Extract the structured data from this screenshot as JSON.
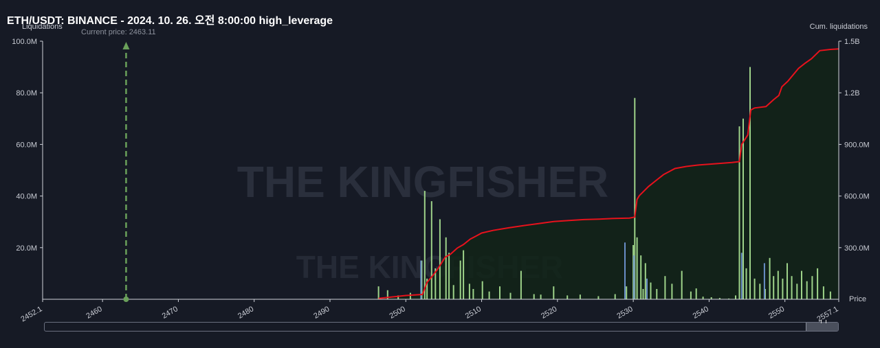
{
  "title": "ETH/USDT: BINANCE - 2024. 10. 26. 오전 8:00:00 high_leverage",
  "current_price_label": "Current price: 2463.11",
  "watermark": "THE KINGFISHER",
  "colors": {
    "background": "#161a25",
    "bars_green": "#9fd48a",
    "bars_blue": "#6a8fc8",
    "cum_line": "#e8121c",
    "cum_fill": "#122418",
    "current_price": "#6aa05a",
    "axis_text": "#c9ccd4"
  },
  "chart_data": {
    "type": "bar",
    "title": "ETH/USDT: BINANCE - 2024. 10. 26. 오전 8:00:00 high_leverage",
    "ylabel": "Liquidations",
    "y2label": "Cum. liquidations",
    "xlabel": "Price",
    "xlim": [
      2452.1,
      2557.1
    ],
    "ylim": [
      0,
      100000000
    ],
    "y2lim": [
      0,
      1500000000
    ],
    "x_ticks": [
      "2452.1",
      "2460",
      "2470",
      "2480",
      "2490",
      "2500",
      "2510",
      "2520",
      "2530",
      "2540",
      "2550",
      "2557.1"
    ],
    "y_ticks": [
      "20.0M",
      "40.0M",
      "60.0M",
      "80.0M",
      "100.0M"
    ],
    "y2_ticks": [
      "300.0M",
      "600.0M",
      "900.0M",
      "1.2B",
      "1.5B"
    ],
    "current_price": 2463.11,
    "series": [
      {
        "name": "Liquidations",
        "x": [
          2496.4,
          2497.6,
          2499.0,
          2500.6,
          2502.1,
          2502.5,
          2502.8,
          2503.4,
          2503.9,
          2504.5,
          2505.3,
          2505.7,
          2506.3,
          2507.2,
          2507.6,
          2508.4,
          2508.9,
          2510.1,
          2511.0,
          2512.4,
          2513.8,
          2515.2,
          2516.9,
          2517.8,
          2519.5,
          2521.3,
          2523.0,
          2525.4,
          2527.6,
          2529.1,
          2530.0,
          2530.2,
          2530.5,
          2531.0,
          2531.3,
          2531.6,
          2532.3,
          2533.1,
          2534.2,
          2535.1,
          2536.4,
          2537.6,
          2538.3,
          2539.2,
          2540.3,
          2541.4,
          2542.6,
          2543.5,
          2544.0,
          2544.5,
          2544.9,
          2545.4,
          2546.0,
          2546.7,
          2547.4,
          2548.0,
          2548.5,
          2549.1,
          2549.7,
          2550.3,
          2550.9,
          2551.6,
          2552.2,
          2552.9,
          2553.6,
          2554.3,
          2555.1,
          2556.0
        ],
        "values": [
          5000000,
          3500000,
          1500000,
          2500000,
          15000000,
          42000000,
          8000000,
          38000000,
          12000000,
          31000000,
          24000000,
          18000000,
          5500000,
          15000000,
          19000000,
          6000000,
          4000000,
          7000000,
          3000000,
          5000000,
          2500000,
          11000000,
          2000000,
          1800000,
          5000000,
          1500000,
          1800000,
          1200000,
          2000000,
          5000000,
          21000000,
          78000000,
          24000000,
          17000000,
          4000000,
          14000000,
          6500000,
          4000000,
          9000000,
          6000000,
          11000000,
          3000000,
          4200000,
          1000000,
          800000,
          500000,
          300000,
          1500000,
          67000000,
          70000000,
          12000000,
          90000000,
          8000000,
          6000000,
          4000000,
          16000000,
          9000000,
          11000000,
          8000000,
          14000000,
          9000000,
          6000000,
          11000000,
          7000000,
          9000000,
          12000000,
          5000000,
          3000000
        ]
      },
      {
        "name": "Cum. liquidations",
        "x": [
          2496.4,
          2500.0,
          2502.2,
          2502.8,
          2503.5,
          2504.2,
          2505.2,
          2505.9,
          2506.8,
          2507.6,
          2508.5,
          2509.3,
          2510.0,
          2511.5,
          2513.5,
          2515.5,
          2517.5,
          2519.5,
          2521.5,
          2523.5,
          2525.5,
          2527.5,
          2529.5,
          2530.2,
          2530.5,
          2530.8,
          2532.0,
          2533.0,
          2534.0,
          2535.5,
          2537.0,
          2538.5,
          2540.0,
          2541.5,
          2543.0,
          2544.0,
          2544.3,
          2545.1,
          2545.5,
          2546.0,
          2547.5,
          2548.5,
          2549.2,
          2549.6,
          2550.4,
          2551.8,
          2552.6,
          2553.5,
          2554.6,
          2556.0,
          2557.1
        ],
        "values": [
          5000000,
          22000000,
          28000000,
          98000000,
          135000000,
          175000000,
          245000000,
          262000000,
          298000000,
          318000000,
          350000000,
          368000000,
          385000000,
          400000000,
          415000000,
          428000000,
          440000000,
          452000000,
          458000000,
          463000000,
          466000000,
          470000000,
          472000000,
          478000000,
          580000000,
          602000000,
          655000000,
          690000000,
          725000000,
          760000000,
          772000000,
          780000000,
          785000000,
          790000000,
          795000000,
          800000000,
          900000000,
          955000000,
          1100000000,
          1112000000,
          1120000000,
          1160000000,
          1185000000,
          1235000000,
          1268000000,
          1342000000,
          1370000000,
          1398000000,
          1445000000,
          1452000000,
          1455000000
        ]
      }
    ],
    "blue_bars_x": [
      2502.0,
      2528.9,
      2530.1,
      2531.8,
      2544.3,
      2547.3
    ],
    "blue_bars_values": [
      15000000,
      22000000,
      17000000,
      8000000,
      18000000,
      14000000
    ],
    "grid": false,
    "legend": "none"
  }
}
